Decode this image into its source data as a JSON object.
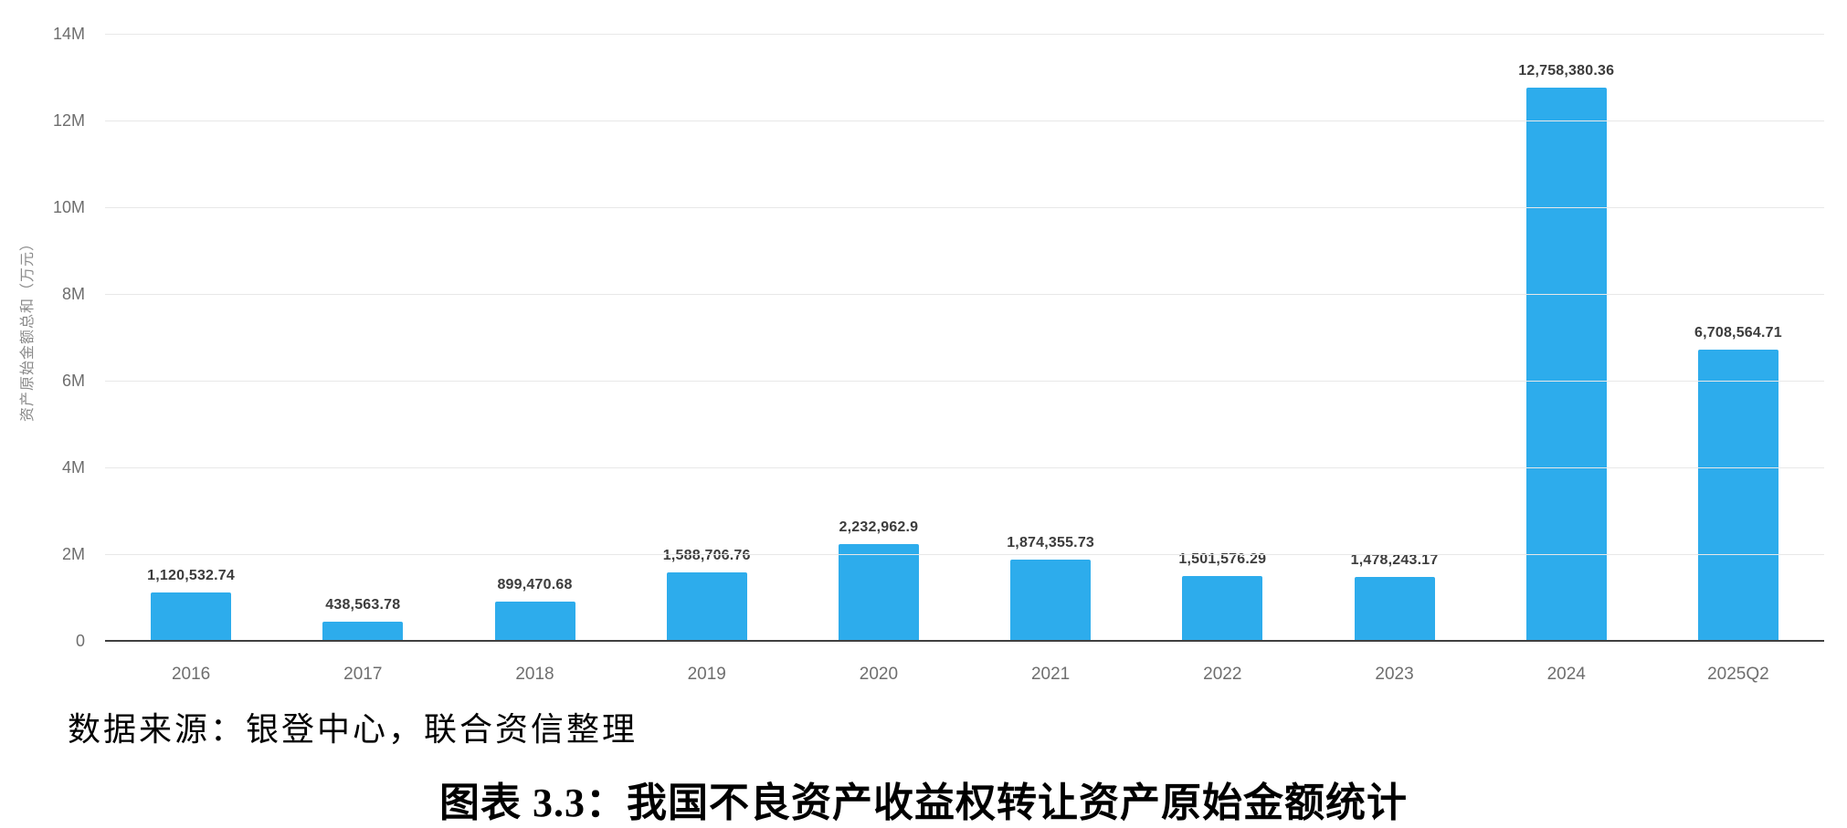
{
  "chart_data": {
    "type": "bar",
    "title": "图表 3.3：我国不良资产收益权转让资产原始金额统计",
    "source": "数据来源：银登中心，联合资信整理",
    "ylabel": "资产原始金额总和（万元）",
    "xlabel": "",
    "categories": [
      "2016",
      "2017",
      "2018",
      "2019",
      "2020",
      "2021",
      "2022",
      "2023",
      "2024",
      "2025Q2"
    ],
    "values": [
      1120532.74,
      438563.78,
      899470.68,
      1588706.76,
      2232962.9,
      1874355.73,
      1501576.29,
      1478243.17,
      12758380.36,
      6708564.71
    ],
    "value_labels": [
      "1,120,532.74",
      "438,563.78",
      "899,470.68",
      "1,588,706.76",
      "2,232,962.9",
      "1,874,355.73",
      "1,501,576.29",
      "1,478,243.17",
      "12,758,380.36",
      "6,708,564.71"
    ],
    "y_ticks": [
      "14M",
      "12M",
      "10M",
      "8M",
      "6M",
      "4M",
      "2M",
      "0"
    ],
    "ylim": [
      0,
      14000000
    ],
    "grid": true,
    "legend": false,
    "bar_color": "#2DACEC",
    "colors": {
      "gridline": "#e8e8e8",
      "axis_line": "#404040",
      "tick_label": "#6e6e6e",
      "value_label": "#3c3c3c",
      "y_title": "#8a8a8a",
      "background": "#ffffff"
    }
  }
}
